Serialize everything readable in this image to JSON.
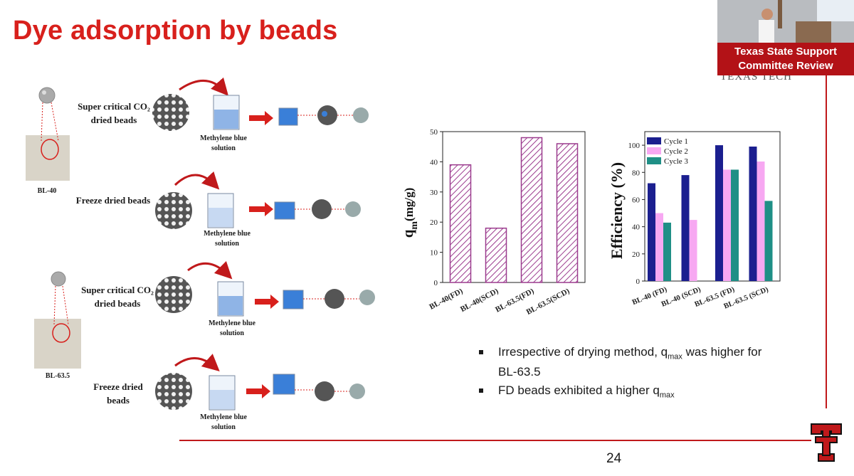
{
  "slide": {
    "title": "Dye adsorption by beads",
    "page_number": "24"
  },
  "workflow": {
    "rows": [
      {
        "label": "Super critical CO₂ dried beads",
        "solution": "Methylene blue solution"
      },
      {
        "label": "Freeze dried beads",
        "solution": "Methylene blue solution"
      },
      {
        "label": "Super critical CO₂ dried beads",
        "solution": "Methylene blue solution"
      },
      {
        "label": "Freeze dried beads",
        "solution": "Methylene blue solution"
      }
    ],
    "samples": [
      "BL-40",
      "BL-63.5"
    ]
  },
  "bullets": [
    {
      "pre": "Irrespective of drying method, q",
      "sub": "max",
      "post": " was higher for BL-63.5"
    },
    {
      "pre": "FD beads exhibited a higher q",
      "sub": "max",
      "post": ""
    }
  ],
  "video": {
    "caption_line1": "Texas State Support",
    "caption_line2": "Committee Review",
    "ghost_text": "TEXAS TECH"
  },
  "colors": {
    "title_red": "#d8201c",
    "rule_red": "#c0191b",
    "hatch": "#9b3b8e",
    "cycle1": "#1b1f8f",
    "cycle2": "#f7a8f2",
    "cycle3": "#1f8f86"
  },
  "icons": [
    "bead-icon",
    "beaker-icon",
    "arrow-right-icon",
    "texas-tech-logo"
  ],
  "chart_data": [
    {
      "type": "bar",
      "title": "",
      "categories": [
        "BL-40(FD)",
        "BL-40(SCD)",
        "BL-63.5(FD)",
        "BL-63.5(SCD)"
      ],
      "values": [
        39,
        18,
        48,
        46
      ],
      "xlabel": "",
      "ylabel": "q",
      "ylabel_sub": "m",
      "ylabel_unit": "(mg/g)",
      "ylim": [
        0,
        50
      ],
      "yticks": [
        0,
        10,
        20,
        30,
        40,
        50
      ],
      "grid": false,
      "legend": "none"
    },
    {
      "type": "bar",
      "title": "",
      "categories": [
        "BL-40 (FD)",
        "BL-40 (SCD)",
        "BL-63.5 (FD)",
        "BL-63.5 (SCD)"
      ],
      "series": [
        {
          "name": "Cycle 1",
          "values": [
            72,
            78,
            100,
            99
          ]
        },
        {
          "name": "Cycle 2",
          "values": [
            50,
            45,
            82,
            88
          ]
        },
        {
          "name": "Cycle 3",
          "values": [
            43,
            0,
            82,
            59
          ]
        }
      ],
      "xlabel": "",
      "ylabel": "Efficiency (%)",
      "ylim": [
        0,
        110
      ],
      "yticks": [
        0,
        20,
        40,
        60,
        80,
        100
      ],
      "grid": false,
      "legend": "top-left"
    }
  ]
}
